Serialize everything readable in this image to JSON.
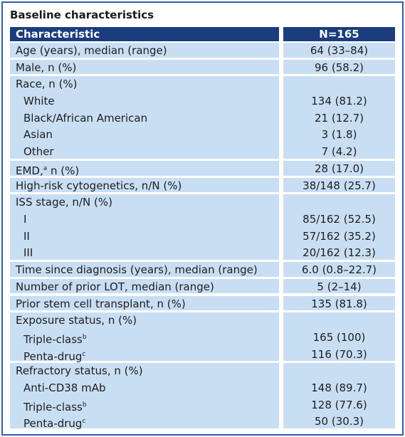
{
  "title": "Baseline characteristics",
  "table": {
    "header": [
      "Characteristic",
      "N=165"
    ],
    "groups": [
      {
        "label": "Age (years), median (range)",
        "value": "64 (33–84)"
      },
      {
        "label": "Male, n (%)",
        "value": "96 (58.2)"
      },
      {
        "label": "Race, n (%)",
        "items": [
          {
            "label": "White",
            "value": "134 (81.2)"
          },
          {
            "label": "Black/African American",
            "value": "21 (12.7)"
          },
          {
            "label": "Asian",
            "value": "3 (1.8)"
          },
          {
            "label": "Other",
            "value": "7 (4.2)"
          }
        ]
      },
      {
        "label": "EMD,",
        "note": "a",
        "suffix": " n (%)",
        "value": "28 (17.0)"
      },
      {
        "label": "High-risk cytogenetics, n/N (%)",
        "value": "38/148 (25.7)"
      },
      {
        "label": "ISS stage, n/N (%)",
        "items": [
          {
            "label": "I",
            "value": "85/162 (52.5)"
          },
          {
            "label": "II",
            "value": "57/162 (35.2)"
          },
          {
            "label": "III",
            "value": "20/162 (12.3)"
          }
        ]
      },
      {
        "label": "Time since diagnosis (years), median (range)",
        "value": "6.0 (0.8–22.7)"
      },
      {
        "label": "Number of prior LOT, median (range)",
        "value": "5 (2–14)"
      },
      {
        "label": "Prior stem cell transplant, n (%)",
        "value": "135 (81.8)"
      },
      {
        "label": "Exposure status, n (%)",
        "items": [
          {
            "label": "Triple-class",
            "note": "b",
            "value": "165 (100)"
          },
          {
            "label": "Penta-drug",
            "note": "c",
            "value": "116 (70.3)"
          }
        ]
      },
      {
        "label": "Refractory status, n (%)",
        "items": [
          {
            "label": "Anti-CD38 mAb",
            "value": "148 (89.7)"
          },
          {
            "label": "Triple-class",
            "note": "b",
            "value": "128 (77.6)"
          },
          {
            "label": "Penta-drug",
            "note": "c",
            "value": "50 (30.3)"
          }
        ]
      }
    ]
  }
}
